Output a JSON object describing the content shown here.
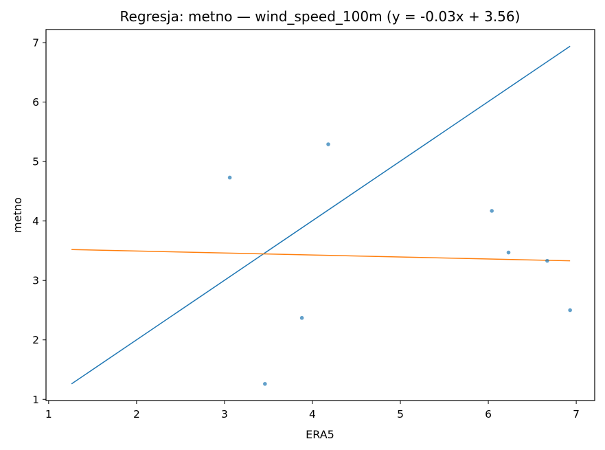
{
  "chart_data": {
    "type": "scatter",
    "title": "Regresja: metno — wind_speed_100m (y = -0.03x + 3.56)",
    "xlabel": "ERA5",
    "ylabel": "metno",
    "xlim": [
      0.97,
      7.21
    ],
    "ylim": [
      0.98,
      7.22
    ],
    "xticks": [
      1,
      2,
      3,
      4,
      5,
      6,
      7
    ],
    "yticks": [
      1,
      2,
      3,
      4,
      5,
      6,
      7
    ],
    "grid": false,
    "colors": {
      "points": "#1f77b4",
      "identity_line": "#1f77b4",
      "regression_line": "#ff7f0e"
    },
    "points": [
      {
        "x": 3.06,
        "y": 4.73
      },
      {
        "x": 4.18,
        "y": 5.29
      },
      {
        "x": 6.04,
        "y": 4.17
      },
      {
        "x": 6.23,
        "y": 3.47
      },
      {
        "x": 6.67,
        "y": 3.33
      },
      {
        "x": 3.88,
        "y": 2.37
      },
      {
        "x": 3.46,
        "y": 1.26
      },
      {
        "x": 6.93,
        "y": 2.5
      }
    ],
    "lines": [
      {
        "kind": "identity",
        "x": [
          1.26,
          6.93
        ],
        "y": [
          1.26,
          6.94
        ]
      },
      {
        "kind": "regression",
        "x": [
          1.26,
          6.93
        ],
        "y": [
          3.52,
          3.33
        ]
      }
    ]
  }
}
